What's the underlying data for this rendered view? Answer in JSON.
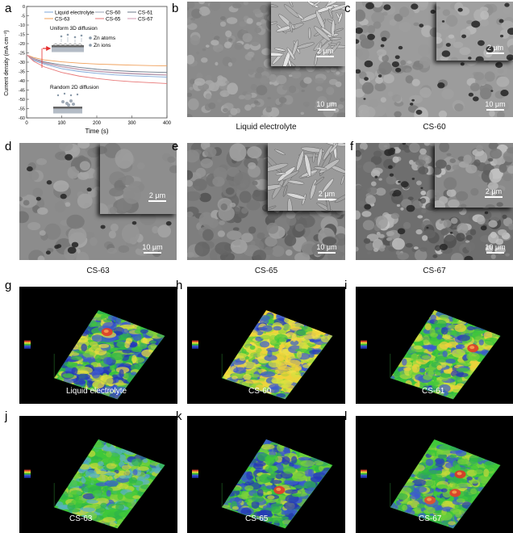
{
  "panels": {
    "a": "a",
    "b": "b",
    "c": "c",
    "d": "d",
    "e": "e",
    "f": "f",
    "g": "g",
    "h": "h",
    "i": "i",
    "j": "j",
    "k": "k",
    "l": "l"
  },
  "sem_captions": {
    "b": "Liquid electrolyte",
    "c": "CS-60",
    "d": "CS-63",
    "e": "CS-65",
    "f": "CS-67"
  },
  "scale_bars": {
    "inset": "2 μm",
    "main": "10 μm",
    "b_inset": "2 μm",
    "b_main": "10 μm"
  },
  "map_labels": {
    "g": "Liquid electrolyte",
    "h": "CS-60",
    "i": "CS-61",
    "j": "CS-63",
    "k": "CS-65",
    "l": "CS-67"
  },
  "chart_data": {
    "type": "line",
    "xlabel": "Time (s)",
    "ylabel": "Current density (mA cm⁻²)",
    "xlim": [
      0,
      400
    ],
    "ylim": [
      -60,
      0
    ],
    "xticks": [
      0,
      100,
      200,
      300,
      400
    ],
    "yticks": [
      0,
      -5,
      -10,
      -15,
      -20,
      -25,
      -30,
      -35,
      -40,
      -45,
      -50,
      -55,
      -60
    ],
    "legend_placement": "top",
    "series": [
      {
        "name": "Liquid electrolyte",
        "color": "#7ea6d8",
        "x": [
          0,
          20,
          50,
          100,
          150,
          200,
          250,
          300,
          350,
          400
        ],
        "y": [
          -26,
          -29,
          -31,
          -33.5,
          -35,
          -36,
          -36.8,
          -37.3,
          -37.7,
          -38
        ]
      },
      {
        "name": "CS-60",
        "color": "#9aa3b5",
        "x": [
          0,
          20,
          50,
          100,
          150,
          200,
          250,
          300,
          350,
          400
        ],
        "y": [
          -26,
          -28.5,
          -30.5,
          -32.5,
          -34,
          -35,
          -35.8,
          -36.3,
          -36.7,
          -37
        ]
      },
      {
        "name": "CS-61",
        "color": "#6c7a8a",
        "x": [
          0,
          20,
          50,
          100,
          150,
          200,
          250,
          300,
          350,
          400
        ],
        "y": [
          -26,
          -28,
          -29.8,
          -31.5,
          -32.8,
          -33.8,
          -34.5,
          -35,
          -35.3,
          -35.5
        ]
      },
      {
        "name": "CS-63",
        "color": "#f0a05a",
        "x": [
          0,
          20,
          50,
          100,
          150,
          200,
          250,
          300,
          350,
          400
        ],
        "y": [
          -26,
          -27.5,
          -28.8,
          -29.8,
          -30.5,
          -31,
          -31.3,
          -31.6,
          -31.8,
          -32
        ]
      },
      {
        "name": "CS-65",
        "color": "#e87878",
        "x": [
          0,
          20,
          50,
          100,
          150,
          200,
          250,
          300,
          350,
          400
        ],
        "y": [
          -26,
          -29.5,
          -32.5,
          -35.5,
          -37.5,
          -38.8,
          -39.8,
          -40.5,
          -41,
          -41.5
        ]
      },
      {
        "name": "CS-67",
        "color": "#d09ab0",
        "x": [
          0,
          20,
          50,
          100,
          150,
          200,
          250,
          300,
          350,
          400
        ],
        "y": [
          -26,
          -28.2,
          -30.2,
          -32.3,
          -33.8,
          -34.8,
          -35.5,
          -36,
          -36.4,
          -36.8
        ]
      }
    ],
    "annotations": {
      "top": "Uniform 3D diffusion",
      "bottom": "Random 2D diffusion",
      "legend_atoms": "Zn atoms",
      "legend_ions": "Zn ions"
    }
  }
}
